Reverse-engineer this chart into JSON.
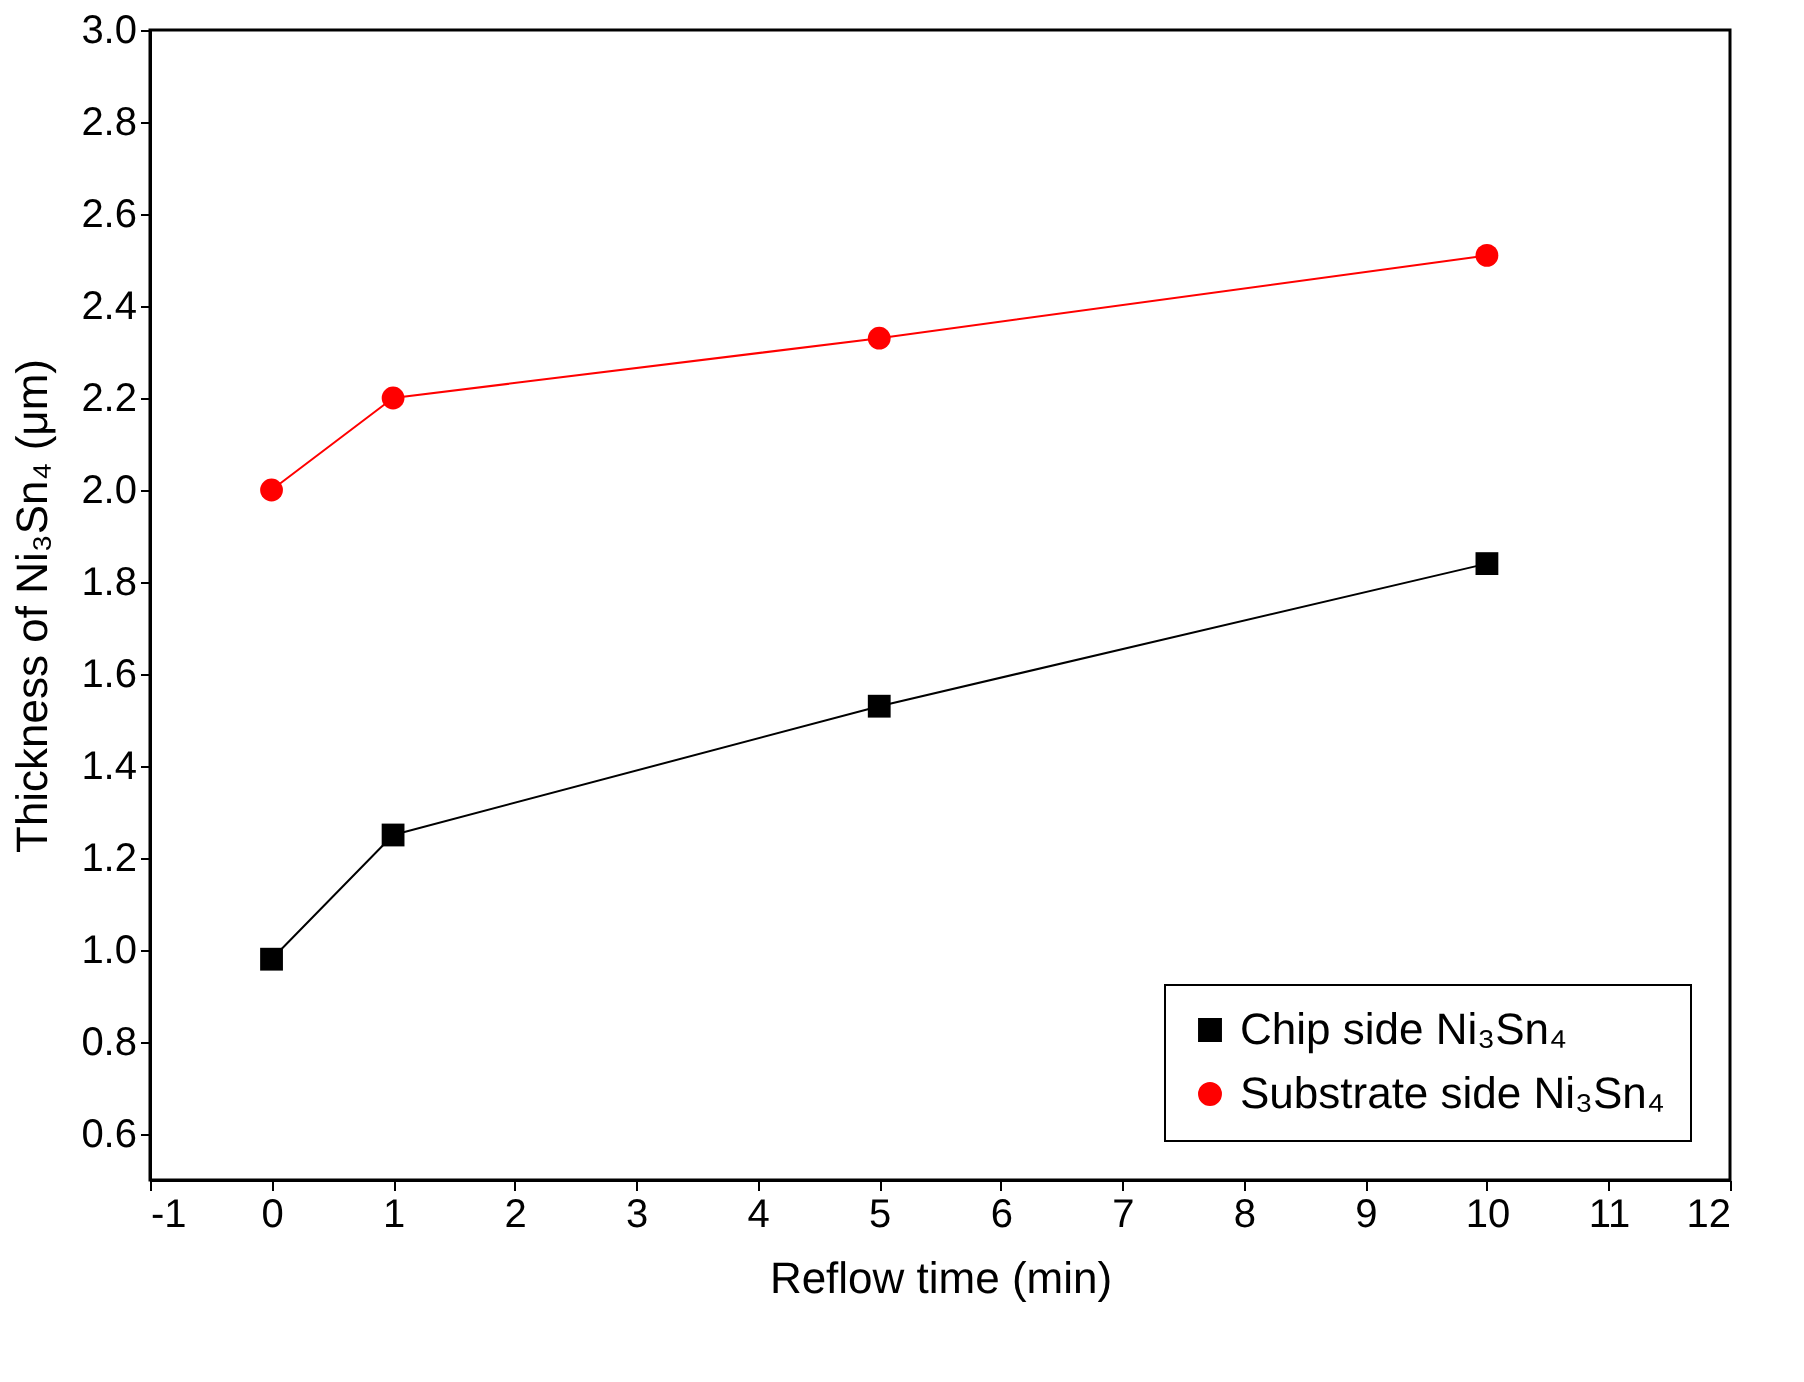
{
  "chart_data": {
    "type": "line",
    "xlabel": "Reflow time (min)",
    "ylabel": "Thickness of Ni₃Sn₄ (μm)",
    "x": [
      0,
      1,
      5,
      10
    ],
    "series": [
      {
        "name": "Chip side Ni₃Sn₄",
        "color": "#000000",
        "marker": "square",
        "values": [
          0.98,
          1.25,
          1.53,
          1.84
        ]
      },
      {
        "name": "Substrate side Ni₃Sn₄",
        "color": "#ff0000",
        "marker": "circle",
        "values": [
          2.0,
          2.2,
          2.33,
          2.51
        ]
      }
    ],
    "xlim": [
      -1,
      12
    ],
    "xticks": [
      -1,
      0,
      1,
      2,
      3,
      4,
      5,
      6,
      7,
      8,
      9,
      10,
      11,
      12
    ],
    "ylim": [
      0.5,
      3.0
    ],
    "yticks": [
      0.6,
      0.8,
      {
        "value": 1,
        "label": "1.0"
      },
      1.2,
      1.4,
      1.6,
      1.8,
      {
        "value": 2,
        "label": "2.0"
      },
      2.2,
      2.4,
      2.6,
      2.8,
      {
        "value": 3,
        "label": "3.0"
      }
    ],
    "grid": false,
    "legend": "bottom right",
    "line_style": "solid"
  }
}
